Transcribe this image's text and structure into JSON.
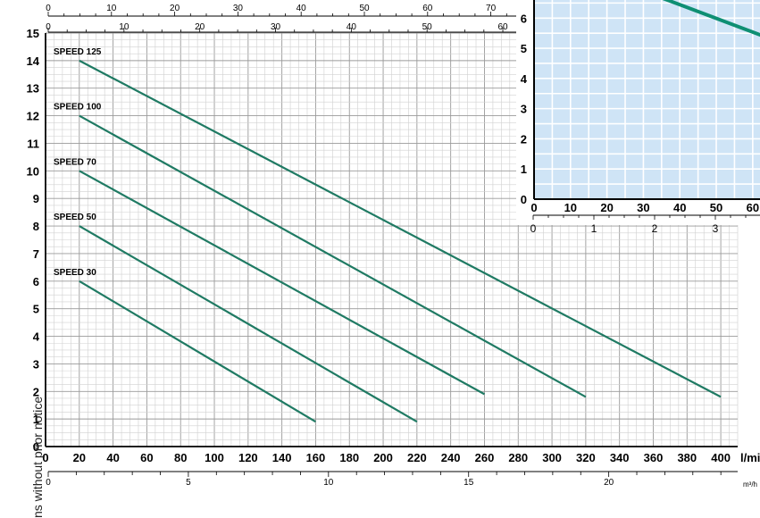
{
  "side_note": "ns without prior notice",
  "chart_data": [
    {
      "type": "line",
      "title": "",
      "x_primary": {
        "unit_label": "l/mi",
        "range": [
          0,
          410
        ],
        "ticks": [
          0,
          20,
          40,
          60,
          80,
          100,
          120,
          140,
          160,
          180,
          200,
          220,
          240,
          260,
          280,
          300,
          320,
          340,
          360,
          380,
          400
        ]
      },
      "x_secondary": {
        "unit_label": "m³/h",
        "range": [
          0,
          24.6
        ],
        "ticks": [
          0,
          5,
          10,
          15,
          20
        ]
      },
      "x_top_outer": {
        "ticks": [
          0,
          10,
          20,
          30,
          40,
          50,
          60,
          70
        ]
      },
      "x_top_inner": {
        "ticks": [
          0,
          10,
          20,
          30,
          40,
          50,
          60
        ]
      },
      "y": {
        "range": [
          0,
          15
        ],
        "ticks": [
          0,
          1,
          2,
          3,
          4,
          5,
          6,
          7,
          8,
          9,
          10,
          11,
          12,
          13,
          14,
          15
        ]
      },
      "grid": true,
      "line_color": "#1f7a63",
      "series": [
        {
          "name": "SPEED 125",
          "x": [
            20,
            400
          ],
          "y": [
            14,
            1.8
          ]
        },
        {
          "name": "SPEED 100",
          "x": [
            20,
            320
          ],
          "y": [
            12,
            1.8
          ]
        },
        {
          "name": "SPEED 70",
          "x": [
            20,
            260
          ],
          "y": [
            10,
            1.9
          ]
        },
        {
          "name": "SPEED 50",
          "x": [
            20,
            220
          ],
          "y": [
            8,
            0.9
          ]
        },
        {
          "name": "SPEED 30",
          "x": [
            20,
            160
          ],
          "y": [
            6,
            0.9
          ]
        }
      ]
    },
    {
      "type": "line",
      "title": "",
      "background": "#cfe4f6",
      "y": {
        "ticks": [
          0,
          1,
          2,
          3,
          4,
          5,
          6
        ]
      },
      "x_primary": {
        "ticks": [
          0,
          10,
          20,
          30,
          40,
          50,
          60
        ]
      },
      "x_secondary": {
        "ticks": [
          0,
          1,
          2,
          3
        ]
      },
      "grid": true,
      "line_color": "#0e8f73",
      "series": [
        {
          "x": [
            30,
            63
          ],
          "y": [
            6.9,
            5.4
          ]
        }
      ]
    }
  ]
}
